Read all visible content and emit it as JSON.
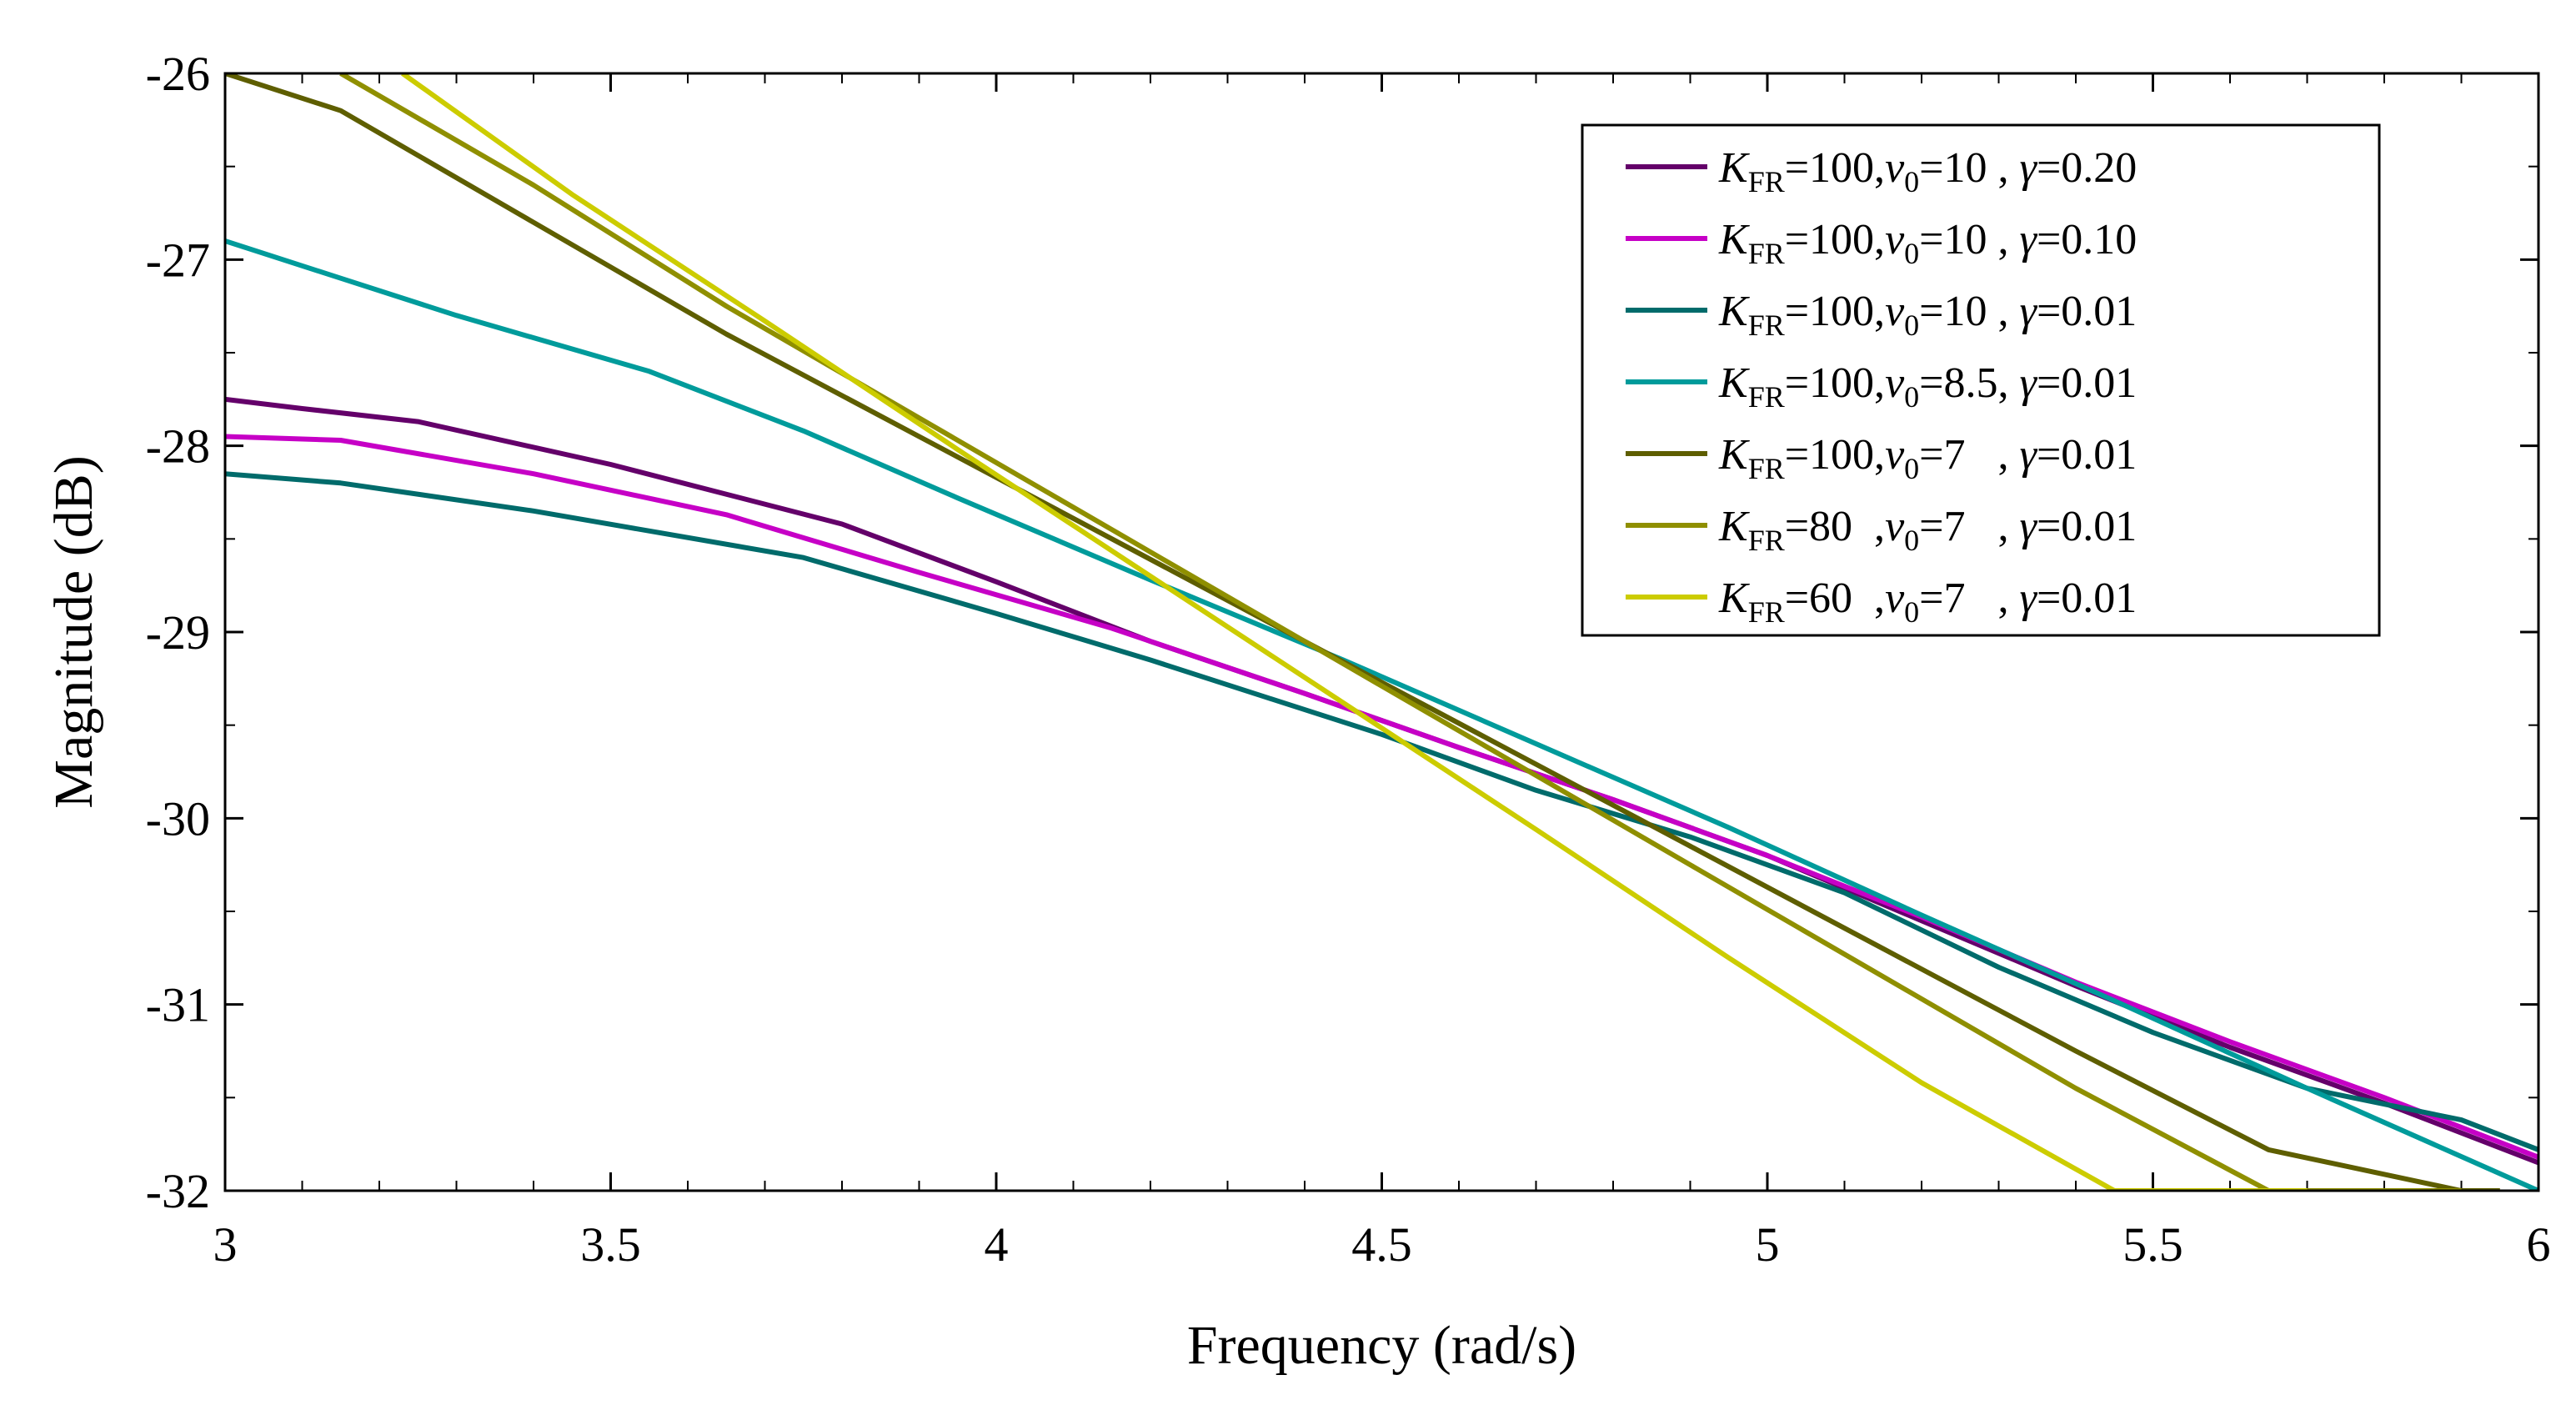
{
  "chart_data": {
    "type": "line",
    "title": "",
    "xlabel": "Frequency (rad/s)",
    "ylabel": "Magnitude (dB)",
    "xlim": [
      3,
      6
    ],
    "ylim": [
      -32,
      -26
    ],
    "xticks": [
      3,
      3.5,
      4,
      4.5,
      5,
      5.5,
      6
    ],
    "xtick_labels": [
      "3",
      "3.5",
      "4",
      "4.5",
      "5",
      "5.5",
      "6"
    ],
    "yticks": [
      -32,
      -31,
      -30,
      -29,
      -28,
      -27,
      -26
    ],
    "ytick_labels": [
      "-32",
      "-31",
      "-30",
      "-29",
      "-28",
      "-27",
      "-26"
    ],
    "grid": false,
    "legend_position": "top-right",
    "series": [
      {
        "name": "K_FR=100,v0=10 , γ=0.20",
        "legend": {
          "k": "K",
          "k_sub": "FR",
          "k_val": "=100,",
          "v": "v",
          "v_sub": "0",
          "v_val": "=10 , ",
          "g": "γ",
          "g_val": "=0.20"
        },
        "color": "#64006a",
        "x": [
          3.0,
          3.1,
          3.25,
          3.5,
          3.8,
          4.0,
          4.2,
          4.4,
          4.6,
          4.8,
          5.0,
          5.2,
          5.4,
          5.6,
          5.8,
          6.0
        ],
        "y": [
          -27.75,
          -27.8,
          -27.87,
          -28.1,
          -28.42,
          -28.73,
          -29.05,
          -29.33,
          -29.62,
          -29.9,
          -30.2,
          -30.55,
          -30.9,
          -31.23,
          -31.53,
          -31.85
        ]
      },
      {
        "name": "K_FR=100,v0=10 , γ=0.10",
        "legend": {
          "k": "K",
          "k_sub": "FR",
          "k_val": "=100,",
          "v": "v",
          "v_sub": "0",
          "v_val": "=10 , ",
          "g": "γ",
          "g_val": "=0.10"
        },
        "color": "#c600c6",
        "x": [
          3.0,
          3.15,
          3.4,
          3.65,
          3.9,
          4.15,
          4.4,
          4.6,
          4.8,
          5.0,
          5.2,
          5.4,
          5.6,
          5.8,
          6.0
        ],
        "y": [
          -27.95,
          -27.97,
          -28.15,
          -28.37,
          -28.68,
          -28.98,
          -29.33,
          -29.62,
          -29.9,
          -30.2,
          -30.53,
          -30.88,
          -31.2,
          -31.5,
          -31.82
        ]
      },
      {
        "name": "K_FR=100,v0=10 , γ=0.01",
        "legend": {
          "k": "K",
          "k_sub": "FR",
          "k_val": "=100,",
          "v": "v",
          "v_sub": "0",
          "v_val": "=10 , ",
          "g": "γ",
          "g_val": "=0.01"
        },
        "color": "#006b6b",
        "x": [
          3.0,
          3.15,
          3.4,
          3.75,
          4.0,
          4.2,
          4.35,
          4.5,
          4.7,
          4.9,
          5.1,
          5.3,
          5.5,
          5.7,
          5.9,
          6.0
        ],
        "y": [
          -28.15,
          -28.2,
          -28.35,
          -28.6,
          -28.9,
          -29.15,
          -29.35,
          -29.55,
          -29.85,
          -30.1,
          -30.4,
          -30.8,
          -31.15,
          -31.45,
          -31.62,
          -31.78
        ]
      },
      {
        "name": "K_FR=100,v0=8.5, γ=0.01",
        "legend": {
          "k": "K",
          "k_sub": "FR",
          "k_val": "=100,",
          "v": "v",
          "v_sub": "0",
          "v_val": "=8.5, ",
          "g": "γ",
          "g_val": "=0.01"
        },
        "color": "#009b9b",
        "x": [
          3.0,
          3.15,
          3.3,
          3.55,
          3.75,
          3.95,
          4.2,
          4.45,
          4.7,
          4.95,
          5.2,
          5.45,
          5.7,
          6.0
        ],
        "y": [
          -26.9,
          -27.1,
          -27.3,
          -27.6,
          -27.92,
          -28.28,
          -28.72,
          -29.15,
          -29.6,
          -30.05,
          -30.52,
          -30.98,
          -31.45,
          -32.0
        ]
      },
      {
        "name": "K_FR=100,v0=7 , γ=0.01",
        "legend": {
          "k": "K",
          "k_sub": "FR",
          "k_val": "=100,",
          "v": "v",
          "v_sub": "0",
          "v_val": "=7   , ",
          "g": "γ",
          "g_val": "=0.01"
        },
        "color": "#5e5e00",
        "x": [
          3.0,
          3.15,
          3.4,
          3.65,
          3.9,
          4.15,
          4.4,
          4.65,
          4.9,
          5.15,
          5.4,
          5.65,
          5.9,
          5.95
        ],
        "y": [
          -26.0,
          -26.2,
          -26.8,
          -27.4,
          -27.95,
          -28.5,
          -29.05,
          -29.6,
          -30.15,
          -30.7,
          -31.25,
          -31.78,
          -32.0,
          -32.0
        ]
      },
      {
        "name": "K_FR=80 ,v0=7 , γ=0.01",
        "legend": {
          "k": "K",
          "k_sub": "FR",
          "k_val": "=80  ,",
          "v": "v",
          "v_sub": "0",
          "v_val": "=7   , ",
          "g": "γ",
          "g_val": "=0.01"
        },
        "color": "#8f8f00",
        "x": [
          3.15,
          3.4,
          3.65,
          3.9,
          4.15,
          4.4,
          4.65,
          4.9,
          5.15,
          5.4,
          5.65,
          5.9
        ],
        "y": [
          -26.0,
          -26.6,
          -27.25,
          -27.85,
          -28.45,
          -29.05,
          -29.65,
          -30.25,
          -30.85,
          -31.45,
          -32.0,
          -32.0
        ]
      },
      {
        "name": "K_FR=60 ,v0=7 , γ=0.01",
        "legend": {
          "k": "K",
          "k_sub": "FR",
          "k_val": "=60  ,",
          "v": "v",
          "v_sub": "0",
          "v_val": "=7   , ",
          "g": "γ",
          "g_val": "=0.01"
        },
        "color": "#cccc00",
        "x": [
          3.23,
          3.45,
          3.7,
          3.95,
          4.2,
          4.45,
          4.7,
          4.95,
          5.2,
          5.45,
          5.7
        ],
        "y": [
          -26.0,
          -26.65,
          -27.33,
          -28.02,
          -28.7,
          -29.38,
          -30.06,
          -30.75,
          -31.42,
          -32.0,
          -32.0
        ]
      }
    ]
  }
}
